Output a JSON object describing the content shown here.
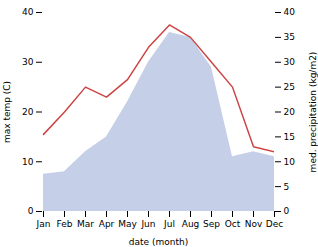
{
  "chart_data": {
    "type": "line",
    "categories": [
      "Jan",
      "Feb",
      "Mar",
      "Apr",
      "May",
      "Jun",
      "Jul",
      "Aug",
      "Sep",
      "Oct",
      "Nov",
      "Dec"
    ],
    "xlabel": "date (month)",
    "ylabel": "max temp (C)",
    "y2label": "med. precipitation (kg/m2)",
    "ylim": [
      0,
      40
    ],
    "yticks": [
      0,
      10,
      20,
      30,
      40
    ],
    "y2lim": [
      0,
      40
    ],
    "y2ticks": [
      0,
      5,
      10,
      15,
      20,
      25,
      30,
      35,
      40
    ],
    "series": [
      {
        "type": "area",
        "axis": "y2",
        "color": "#c5d0e8",
        "values": [
          7.5,
          8.0,
          12.0,
          15.0,
          22.0,
          30.0,
          36.0,
          35.0,
          29.0,
          11.0,
          12.0,
          11.0
        ]
      },
      {
        "type": "line",
        "color": "#cc4444",
        "values": [
          15.5,
          20.0,
          25.0,
          23.0,
          26.5,
          33.0,
          37.5,
          35.0,
          30.0,
          25.0,
          13.0,
          12.0
        ]
      }
    ]
  }
}
